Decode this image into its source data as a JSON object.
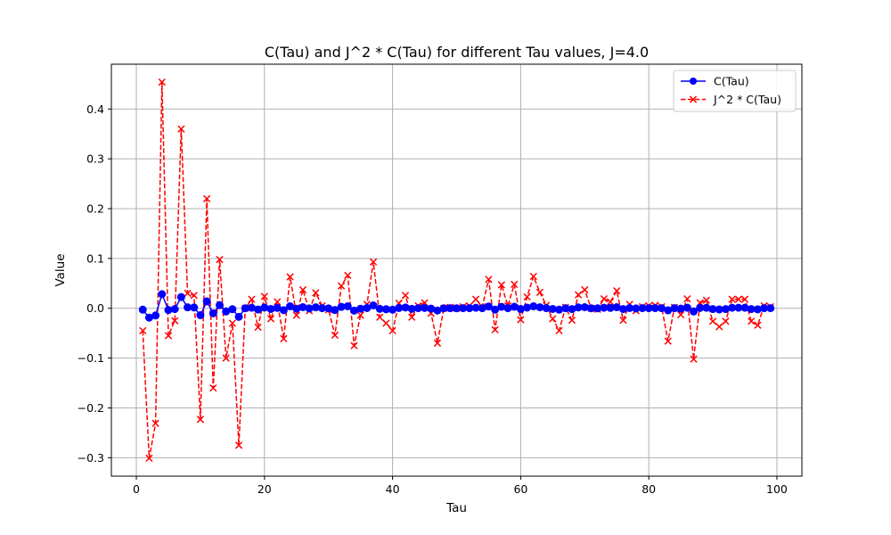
{
  "chart_data": {
    "type": "line",
    "title": "C(Tau) and J^2 * C(Tau) for different Tau values, J=4.0",
    "xlabel": "Tau",
    "ylabel": "Value",
    "xlim": [
      -3.9,
      103.9
    ],
    "ylim": [
      -0.337,
      0.49
    ],
    "xticks": [
      0,
      20,
      40,
      60,
      80,
      100
    ],
    "yticks": [
      -0.3,
      -0.2,
      -0.1,
      0.0,
      0.1,
      0.2,
      0.3,
      0.4
    ],
    "ytick_labels": [
      "−0.3",
      "−0.2",
      "−0.1",
      "0.0",
      "0.1",
      "0.2",
      "0.3",
      "0.4"
    ],
    "grid": true,
    "legend_position": "upper right",
    "x": [
      1,
      2,
      3,
      4,
      5,
      6,
      7,
      8,
      9,
      10,
      11,
      12,
      13,
      14,
      15,
      16,
      17,
      18,
      19,
      20,
      21,
      22,
      23,
      24,
      25,
      26,
      27,
      28,
      29,
      30,
      31,
      32,
      33,
      34,
      35,
      36,
      37,
      38,
      39,
      40,
      41,
      42,
      43,
      44,
      45,
      46,
      47,
      48,
      49,
      50,
      51,
      52,
      53,
      54,
      55,
      56,
      57,
      58,
      59,
      60,
      61,
      62,
      63,
      64,
      65,
      66,
      67,
      68,
      69,
      70,
      71,
      72,
      73,
      74,
      75,
      76,
      77,
      78,
      79,
      80,
      81,
      82,
      83,
      84,
      85,
      86,
      87,
      88,
      89,
      90,
      91,
      92,
      93,
      94,
      95,
      96,
      97,
      98,
      99
    ],
    "series": [
      {
        "name": "C(Tau)",
        "color": "#0000ff",
        "linestyle": "solid",
        "marker": "circle",
        "values": [
          -0.0028,
          -0.0188,
          -0.0144,
          0.0284,
          -0.0034,
          -0.0016,
          0.0225,
          0.0019,
          0.0016,
          -0.0139,
          0.0138,
          -0.01,
          0.0062,
          -0.0063,
          -0.0019,
          -0.0172,
          0.0,
          0.0011,
          -0.0024,
          0.0015,
          -0.0013,
          0.0008,
          -0.0038,
          0.0039,
          -0.0009,
          0.0023,
          -0.0003,
          0.0019,
          0.0003,
          -0.0002,
          -0.0034,
          0.0028,
          0.0041,
          -0.0047,
          -0.0009,
          0.0005,
          0.0058,
          -0.0011,
          -0.0019,
          -0.0028,
          0.0006,
          0.0016,
          -0.0011,
          0.0003,
          0.0007,
          -0.0006,
          -0.0044,
          0.0,
          0.0001,
          0.0,
          0.0002,
          0.0003,
          0.0011,
          0.0002,
          0.0036,
          -0.0027,
          0.0029,
          0.0003,
          0.003,
          -0.0014,
          0.0014,
          0.004,
          0.002,
          0.0004,
          -0.0013,
          -0.0028,
          0.0001,
          -0.0015,
          0.0017,
          0.0023,
          0.0,
          -0.0001,
          0.0012,
          0.0008,
          0.0022,
          -0.0015,
          0.0005,
          -0.0003,
          0.0002,
          0.0003,
          0.0004,
          0.0002,
          -0.0041,
          0.0001,
          -0.0008,
          0.0012,
          -0.0064,
          0.0007,
          0.001,
          -0.0016,
          -0.0023,
          -0.0016,
          0.0011,
          0.0011,
          0.0011,
          -0.0016,
          -0.0021,
          0.0003,
          0.0002
        ]
      },
      {
        "name": "J^2 * C(Tau)",
        "color": "#ff0000",
        "linestyle": "dashed",
        "marker": "x",
        "values": [
          -0.045,
          -0.301,
          -0.231,
          0.454,
          -0.055,
          -0.025,
          0.36,
          0.03,
          0.026,
          -0.223,
          0.22,
          -0.16,
          0.098,
          -0.1,
          -0.03,
          -0.275,
          0.0,
          0.018,
          -0.038,
          0.024,
          -0.021,
          0.013,
          -0.061,
          0.063,
          -0.014,
          0.037,
          -0.005,
          0.031,
          0.005,
          -0.003,
          -0.054,
          0.045,
          0.066,
          -0.075,
          -0.014,
          0.008,
          0.093,
          -0.018,
          -0.03,
          -0.045,
          0.01,
          0.026,
          -0.018,
          0.005,
          0.011,
          -0.01,
          -0.07,
          0.0,
          0.002,
          0.0,
          0.003,
          0.005,
          0.018,
          0.003,
          0.058,
          -0.043,
          0.047,
          0.005,
          0.048,
          -0.023,
          0.023,
          0.064,
          0.032,
          0.006,
          -0.021,
          -0.045,
          0.002,
          -0.024,
          0.027,
          0.037,
          0.0,
          -0.002,
          0.019,
          0.013,
          0.035,
          -0.024,
          0.008,
          -0.005,
          0.003,
          0.005,
          0.006,
          0.003,
          -0.066,
          0.002,
          -0.013,
          0.019,
          -0.102,
          0.011,
          0.016,
          -0.026,
          -0.037,
          -0.026,
          0.018,
          0.018,
          0.018,
          -0.026,
          -0.034,
          0.005,
          0.003
        ]
      }
    ]
  }
}
